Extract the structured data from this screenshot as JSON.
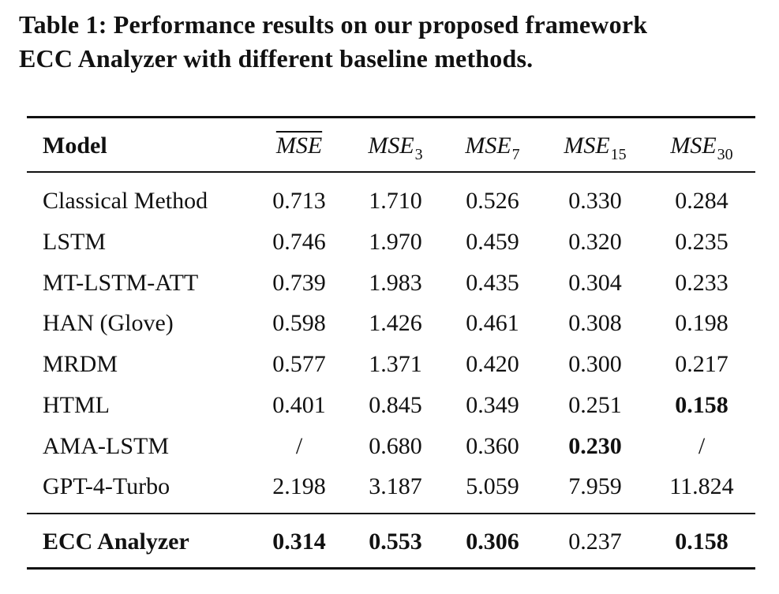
{
  "caption": {
    "line1": "Table 1: Performance results on our proposed framework",
    "line2": "ECC Analyzer with different baseline methods."
  },
  "table": {
    "header": {
      "model": "Model",
      "col1": "MSE",
      "col2_base": "MSE",
      "col2_sub": "3",
      "col3_base": "MSE",
      "col3_sub": "7",
      "col4_base": "MSE",
      "col4_sub": "15",
      "col5_base": "MSE",
      "col5_sub": "30"
    },
    "rows": [
      {
        "model": "Classical Method",
        "mse": "0.713",
        "mse3": "1.710",
        "mse7": "0.526",
        "mse15": "0.330",
        "mse30": "0.284"
      },
      {
        "model": "LSTM",
        "mse": "0.746",
        "mse3": "1.970",
        "mse7": "0.459",
        "mse15": "0.320",
        "mse30": "0.235"
      },
      {
        "model": "MT-LSTM-ATT",
        "mse": "0.739",
        "mse3": "1.983",
        "mse7": "0.435",
        "mse15": "0.304",
        "mse30": "0.233"
      },
      {
        "model": "HAN (Glove)",
        "mse": "0.598",
        "mse3": "1.426",
        "mse7": "0.461",
        "mse15": "0.308",
        "mse30": "0.198"
      },
      {
        "model": "MRDM",
        "mse": "0.577",
        "mse3": "1.371",
        "mse7": "0.420",
        "mse15": "0.300",
        "mse30": "0.217"
      },
      {
        "model": "HTML",
        "mse": "0.401",
        "mse3": "0.845",
        "mse7": "0.349",
        "mse15": "0.251",
        "mse30": "0.158"
      },
      {
        "model": "AMA-LSTM",
        "mse": "/",
        "mse3": "0.680",
        "mse7": "0.360",
        "mse15": "0.230",
        "mse30": "/"
      },
      {
        "model": "GPT-4-Turbo",
        "mse": "2.198",
        "mse3": "3.187",
        "mse7": "5.059",
        "mse15": "7.959",
        "mse30": "11.824"
      }
    ],
    "final_row": {
      "model": "ECC Analyzer",
      "mse": "0.314",
      "mse3": "0.553",
      "mse7": "0.306",
      "mse15": "0.237",
      "mse30": "0.158"
    }
  }
}
